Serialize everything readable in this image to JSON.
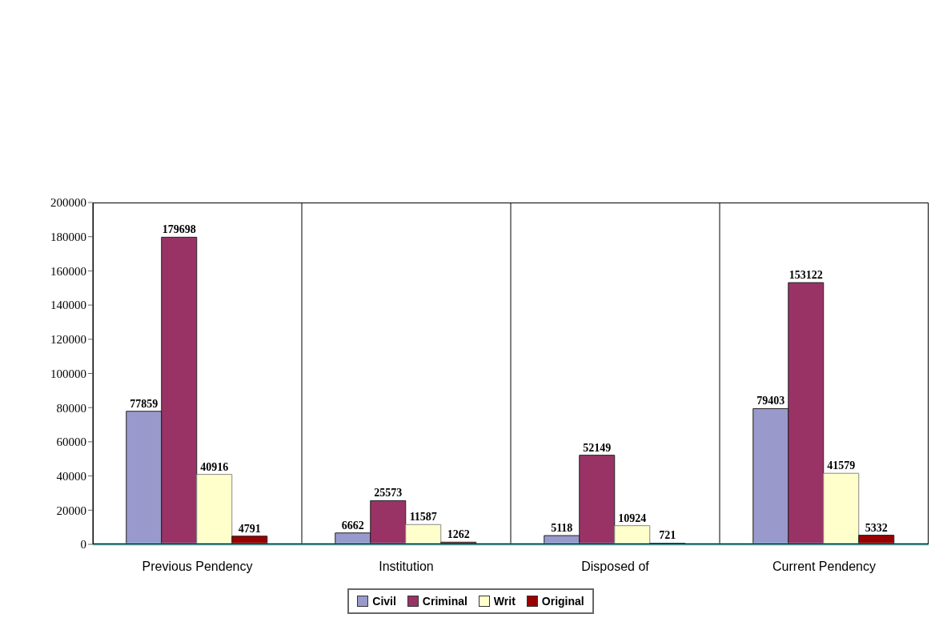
{
  "chart_data": {
    "type": "bar",
    "categories": [
      "Previous Pendency",
      "Institution",
      "Disposed of",
      "Current Pendency"
    ],
    "series": [
      {
        "name": "Civil",
        "color": "#9999cc",
        "values": [
          77859,
          6662,
          5118,
          79403
        ]
      },
      {
        "name": "Criminal",
        "color": "#993366",
        "values": [
          179698,
          25573,
          52149,
          153122
        ]
      },
      {
        "name": "Writ",
        "color": "#ffffcc",
        "values": [
          40916,
          11587,
          10924,
          41579
        ]
      },
      {
        "name": "Original",
        "color": "#990000",
        "values": [
          4791,
          1262,
          721,
          5332
        ]
      }
    ],
    "ylim": [
      0,
      200000
    ],
    "yticks": [
      0,
      20000,
      40000,
      60000,
      80000,
      100000,
      120000,
      140000,
      160000,
      180000,
      200000
    ],
    "grid": "x",
    "legend": "bottom",
    "data_labels": true
  }
}
